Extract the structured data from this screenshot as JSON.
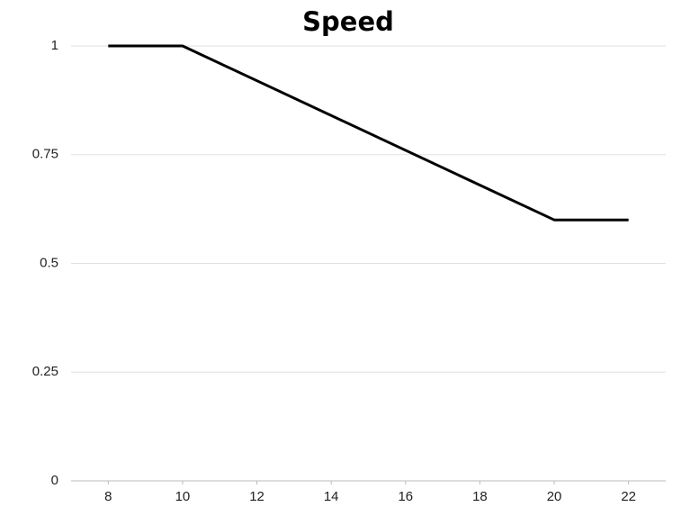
{
  "chart_data": {
    "type": "line",
    "title": "Speed",
    "x": [
      8,
      10,
      20,
      22
    ],
    "values": [
      1,
      1,
      0.6,
      0.6
    ],
    "color": "#000000",
    "xlim": [
      7,
      23
    ],
    "xticks": [
      8,
      10,
      12,
      14,
      16,
      18,
      20,
      22
    ],
    "ylim": [
      0,
      1
    ],
    "yticks": [
      0,
      0.25,
      0.5,
      0.75,
      1
    ],
    "grid": true
  }
}
